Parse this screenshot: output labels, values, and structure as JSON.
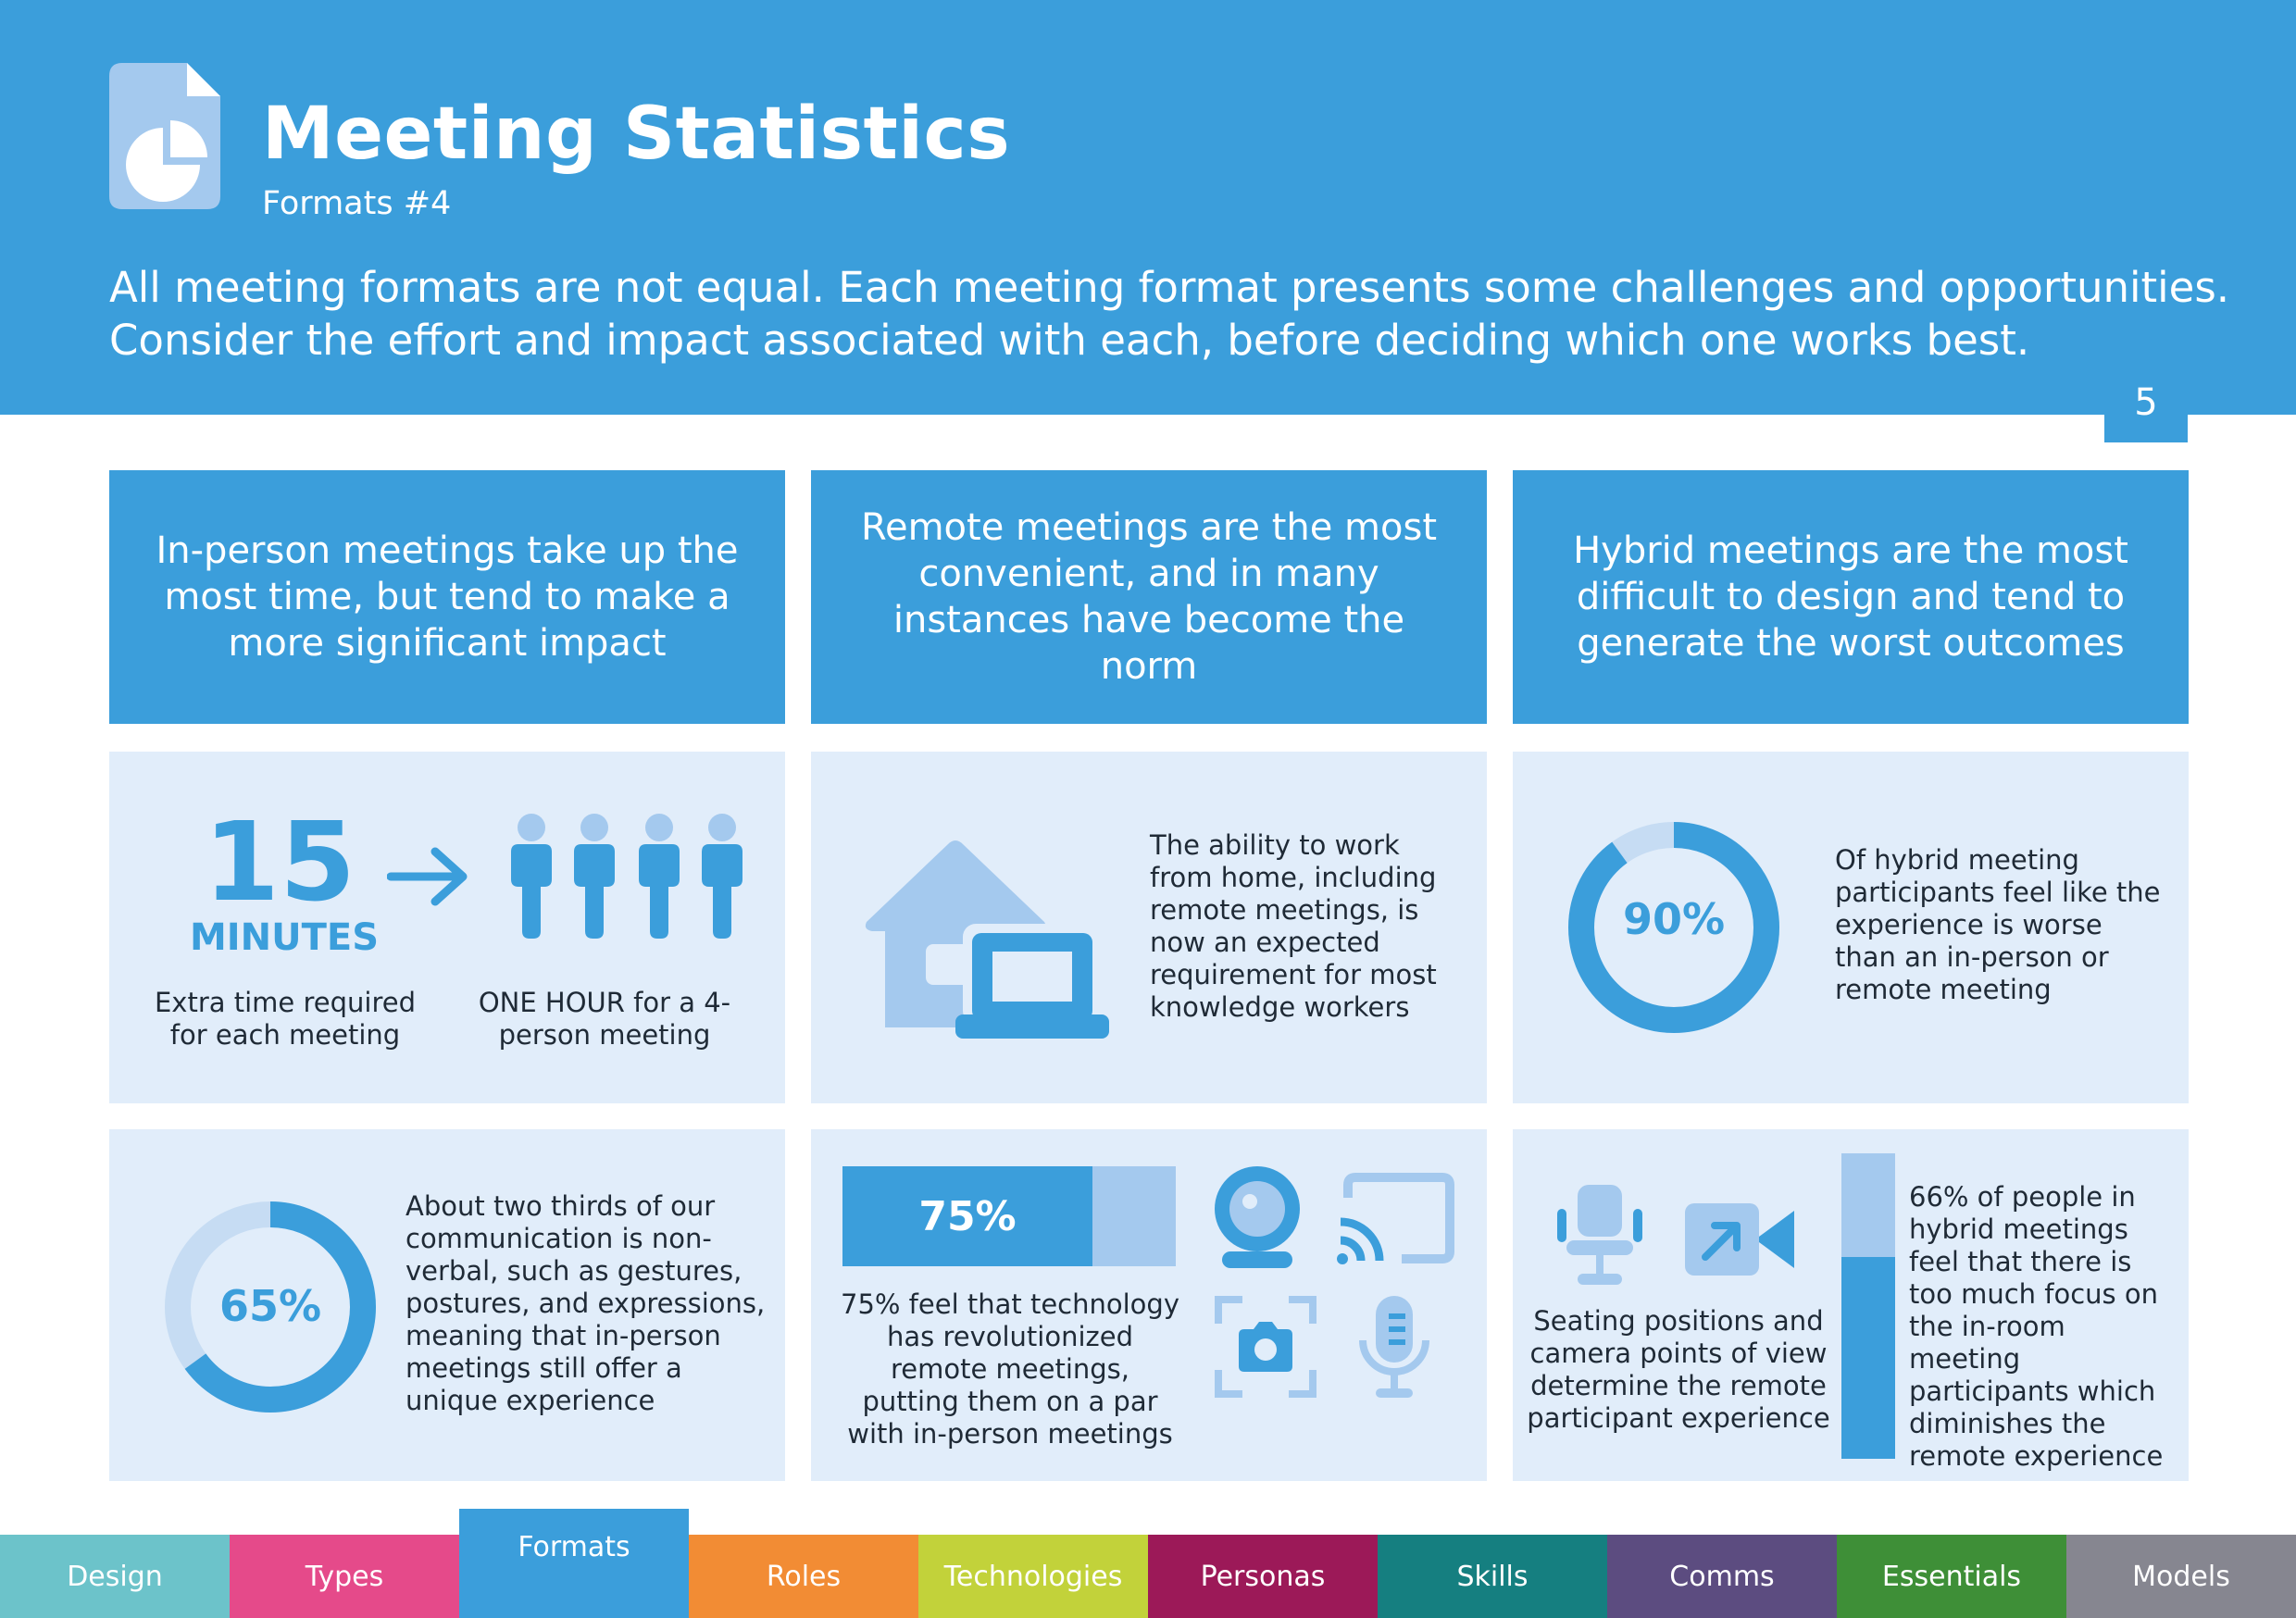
{
  "header": {
    "title": "Meeting Statistics",
    "subtitle": "Formats #4",
    "intro_line1": "All meeting formats are not equal. Each meeting format presents some challenges and opportunities.",
    "intro_line2": "Consider the effort and impact associated with each, before deciding which one works best.",
    "page_number": "5"
  },
  "columns": [
    {
      "heading": "In-person meetings take up the most time, but tend to make a more significant impact"
    },
    {
      "heading": "Remote meetings are the most convenient, and in many instances have become the norm"
    },
    {
      "heading": "Hybrid meetings are the most difficult to design and tend to generate the worst outcomes"
    }
  ],
  "stats": {
    "time": {
      "value": "15",
      "unit": "MINUTES",
      "caption_left": "Extra time required for each meeting",
      "caption_right": "ONE HOUR for a 4-person meeting"
    },
    "remote": {
      "caption": "The ability to work from home, including remote meetings, is now an expected requirement for most knowledge workers"
    },
    "hybrid_worse": {
      "value": "90%",
      "fraction": 0.9,
      "caption": "Of hybrid meeting participants feel like the experience is worse than an in-person or remote meeting"
    },
    "nonverbal": {
      "value": "65%",
      "fraction": 0.65,
      "caption": "About two thirds of our communication is non-verbal, such as gestures, postures, and expressions, meaning that in-person meetings still offer a unique experience"
    },
    "technology": {
      "value": "75%",
      "fraction": 0.75,
      "caption": "75% feel that technology has revolutionized remote meetings, putting them on a par with in-person meetings"
    },
    "seating": {
      "caption": "Seating positions and camera points of view determine the remote participant experience"
    },
    "focus": {
      "fraction": 0.66,
      "caption": "66% of people in hybrid meetings feel that there is too much focus on the in-room meeting participants which diminishes the remote experience"
    }
  },
  "footer_tabs": [
    {
      "label": "Design",
      "color": "#6cc3ca"
    },
    {
      "label": "Types",
      "color": "#e54a8a"
    },
    {
      "label": "Formats",
      "color": "#3b9edb",
      "active": true
    },
    {
      "label": "Roles",
      "color": "#f28c34"
    },
    {
      "label": "Technologies",
      "color": "#c2d23a"
    },
    {
      "label": "Personas",
      "color": "#9c1958"
    },
    {
      "label": "Skills",
      "color": "#157f80"
    },
    {
      "label": "Comms",
      "color": "#5c4c80"
    },
    {
      "label": "Essentials",
      "color": "#3e8f37"
    },
    {
      "label": "Models",
      "color": "#868690"
    }
  ],
  "colors": {
    "primary": "#3b9edb",
    "light": "#a4c9ee",
    "panel": "#e1edfa"
  },
  "icons": [
    "document-chart-icon",
    "arrow-right-icon",
    "person-icon",
    "house-laptop-icon",
    "webcam-icon",
    "cast-icon",
    "camera-frame-icon",
    "microphone-icon",
    "office-chair-icon",
    "video-camera-icon"
  ]
}
